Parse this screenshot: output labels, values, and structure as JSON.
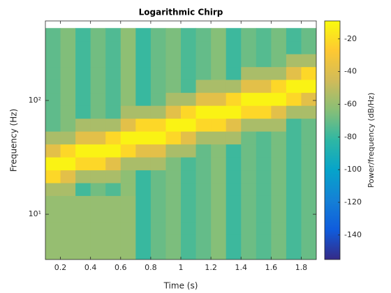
{
  "chart_data": {
    "type": "spectrogram",
    "title": "Logarithmic Chirp",
    "xlabel": "Time (s)",
    "ylabel": "Frequency (Hz)",
    "colorbar_label": "Power/frequency (dB/Hz)",
    "x": [
      0.15,
      0.25,
      0.35,
      0.45,
      0.55,
      0.65,
      0.75,
      0.85,
      0.95,
      1.05,
      1.15,
      1.25,
      1.35,
      1.45,
      1.55,
      1.65,
      1.75,
      1.85
    ],
    "y": [
      4.5,
      5.8,
      7.6,
      9.8,
      12.8,
      16.6,
      21.5,
      27.9,
      36.3,
      47.1,
      61.1,
      79.3,
      103,
      134,
      174,
      225,
      293,
      380
    ],
    "z": [
      [
        -60,
        -60,
        -60,
        -60,
        -60,
        -60,
        -80,
        -70,
        -66,
        -76,
        -71,
        -64,
        -79,
        -69,
        -74,
        -67,
        -77,
        -70
      ],
      [
        -60,
        -60,
        -60,
        -60,
        -60,
        -60,
        -80,
        -70,
        -66,
        -76,
        -71,
        -64,
        -79,
        -69,
        -74,
        -67,
        -77,
        -70
      ],
      [
        -60,
        -60,
        -60,
        -60,
        -60,
        -60,
        -80,
        -70,
        -66,
        -76,
        -71,
        -64,
        -79,
        -69,
        -74,
        -67,
        -77,
        -70
      ],
      [
        -60,
        -60,
        -60,
        -60,
        -60,
        -60,
        -80,
        -70,
        -66,
        -76,
        -71,
        -64,
        -79,
        -69,
        -74,
        -67,
        -77,
        -70
      ],
      [
        -60,
        -60,
        -60,
        -60,
        -60,
        -60,
        -80,
        -70,
        -66,
        -76,
        -71,
        -64,
        -79,
        -69,
        -74,
        -67,
        -77,
        -70
      ],
      [
        -55,
        -55,
        -78,
        -68,
        -75,
        -62,
        -80,
        -70,
        -66,
        -76,
        -71,
        -64,
        -79,
        -69,
        -74,
        -67,
        -77,
        -70
      ],
      [
        -22,
        -38,
        -55,
        -55,
        -55,
        -62,
        -80,
        -70,
        -66,
        -76,
        -71,
        -64,
        -79,
        -69,
        -74,
        -67,
        -77,
        -70
      ],
      [
        -12,
        -12,
        -22,
        -22,
        -38,
        -55,
        -55,
        -55,
        -66,
        -76,
        -71,
        -64,
        -79,
        -69,
        -74,
        -67,
        -77,
        -70
      ],
      [
        -38,
        -22,
        -12,
        -12,
        -12,
        -22,
        -38,
        -38,
        -55,
        -55,
        -71,
        -64,
        -79,
        -69,
        -74,
        -67,
        -77,
        -70
      ],
      [
        -55,
        -55,
        -38,
        -38,
        -22,
        -12,
        -12,
        -12,
        -22,
        -38,
        -55,
        -55,
        -55,
        -69,
        -74,
        -67,
        -77,
        -70
      ],
      [
        -72,
        -65,
        -55,
        -55,
        -55,
        -38,
        -22,
        -22,
        -12,
        -12,
        -22,
        -22,
        -38,
        -55,
        -55,
        -55,
        -77,
        -70
      ],
      [
        -72,
        -65,
        -78,
        -68,
        -75,
        -55,
        -55,
        -55,
        -38,
        -22,
        -12,
        -12,
        -12,
        -22,
        -22,
        -38,
        -55,
        -55
      ],
      [
        -72,
        -65,
        -78,
        -68,
        -75,
        -62,
        -80,
        -70,
        -55,
        -55,
        -38,
        -38,
        -22,
        -12,
        -12,
        -12,
        -22,
        -38
      ],
      [
        -72,
        -65,
        -78,
        -68,
        -75,
        -62,
        -80,
        -70,
        -66,
        -76,
        -55,
        -55,
        -55,
        -38,
        -38,
        -22,
        -12,
        -12
      ],
      [
        -72,
        -65,
        -78,
        -68,
        -75,
        -62,
        -80,
        -70,
        -66,
        -76,
        -71,
        -64,
        -79,
        -55,
        -55,
        -55,
        -38,
        -22
      ],
      [
        -72,
        -65,
        -78,
        -68,
        -75,
        -62,
        -80,
        -70,
        -66,
        -76,
        -71,
        -64,
        -79,
        -69,
        -74,
        -67,
        -55,
        -55
      ],
      [
        -72,
        -65,
        -78,
        -68,
        -75,
        -62,
        -80,
        -70,
        -66,
        -76,
        -71,
        -64,
        -79,
        -69,
        -74,
        -67,
        -77,
        -70
      ],
      [
        -72,
        -65,
        -78,
        -68,
        -75,
        -62,
        -80,
        -70,
        -66,
        -76,
        -71,
        -64,
        -79,
        -69,
        -74,
        -67,
        -77,
        -70
      ]
    ],
    "xlim": [
      0.1,
      1.9
    ],
    "xticks": [
      0.2,
      0.4,
      0.6,
      0.8,
      1,
      1.2,
      1.4,
      1.6,
      1.8
    ],
    "ylim": [
      4,
      500
    ],
    "ylog": true,
    "yticks": [
      {
        "value": 10,
        "label": "10¹"
      },
      {
        "value": 100,
        "label": "10²"
      }
    ],
    "clim": [
      -155,
      -9
    ],
    "cticks": [
      -20,
      -40,
      -60,
      -80,
      -100,
      -120,
      -140
    ],
    "colormap": [
      "#352a87",
      "#0f5cdd",
      "#1481d6",
      "#06a4ca",
      "#2eb7a4",
      "#87bf77",
      "#d1bb59",
      "#fec832",
      "#f9fb0e"
    ]
  }
}
